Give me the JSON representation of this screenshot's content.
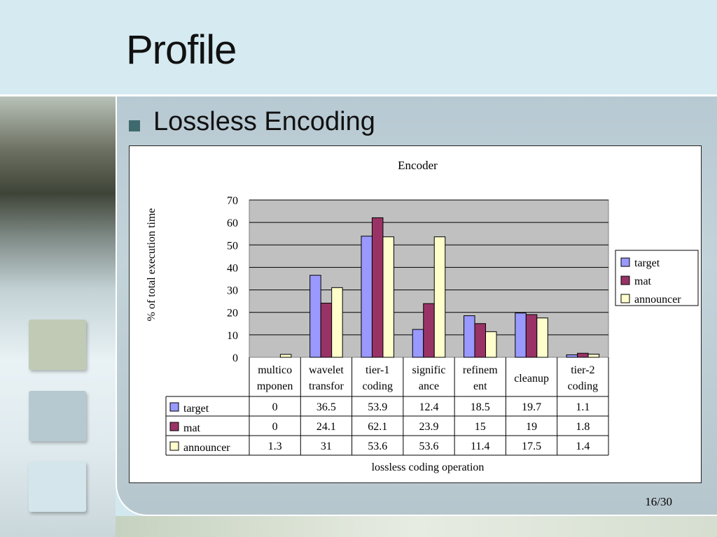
{
  "slide": {
    "title": "Profile",
    "bullet": "Lossless Encoding",
    "page_number": "16/30"
  },
  "colors": {
    "target": "#9999ff",
    "mat": "#993366",
    "announcer": "#ffffcc",
    "plot_background": "#c0c0c0"
  },
  "chart_data": {
    "type": "bar",
    "title": "Encoder",
    "xlabel": "lossless coding operation",
    "ylabel": "% of total execution time",
    "ylim": [
      0,
      70
    ],
    "yticks": [
      0,
      10,
      20,
      30,
      40,
      50,
      60,
      70
    ],
    "grid": true,
    "legend_position": "right",
    "categories": [
      [
        "multico",
        "mponen"
      ],
      [
        "wavelet",
        "transfor"
      ],
      [
        "tier-1",
        "coding"
      ],
      [
        "signific",
        "ance"
      ],
      [
        "refinem",
        "ent"
      ],
      [
        "cleanup"
      ],
      [
        "tier-2",
        "coding"
      ]
    ],
    "series": [
      {
        "name": "target",
        "values": [
          0,
          36.5,
          53.9,
          12.4,
          18.5,
          19.7,
          1.1
        ],
        "labels": [
          "0",
          "36.5",
          "53.9",
          "12.4",
          "18.5",
          "19.7",
          "1.1"
        ]
      },
      {
        "name": "mat",
        "values": [
          0,
          24.1,
          62.1,
          23.9,
          15,
          19,
          1.8
        ],
        "labels": [
          "0",
          "24.1",
          "62.1",
          "23.9",
          "15",
          "19",
          "1.8"
        ]
      },
      {
        "name": "announcer",
        "values": [
          1.3,
          31,
          53.6,
          53.6,
          11.4,
          17.5,
          1.4
        ],
        "labels": [
          "1.3",
          "31",
          "53.6",
          "53.6",
          "11.4",
          "17.5",
          "1.4"
        ]
      }
    ]
  }
}
